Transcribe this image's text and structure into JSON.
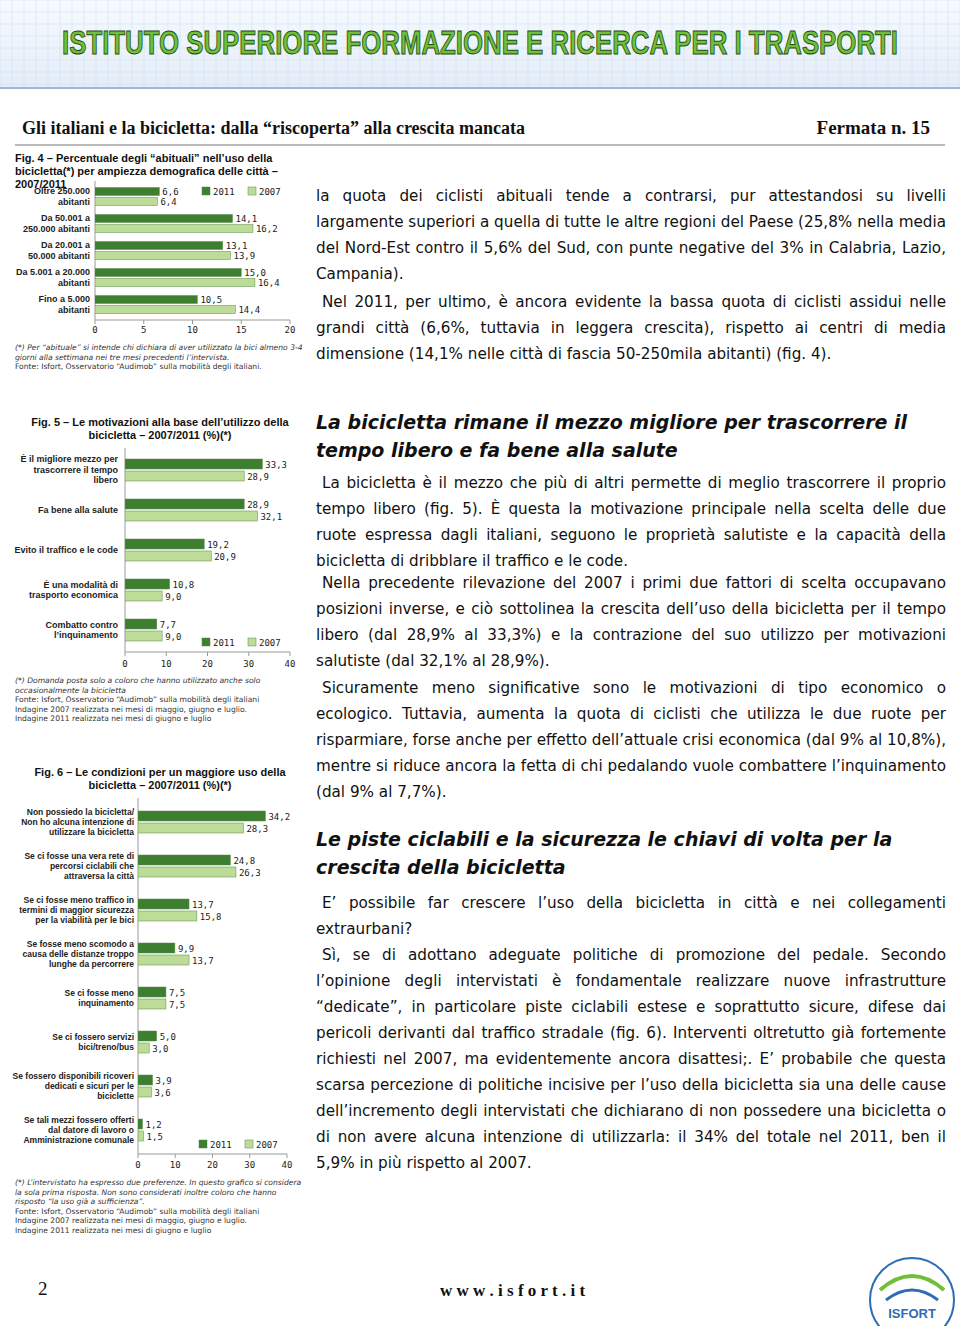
{
  "header": {
    "banner": "ISTITUTO SUPERIORE FORMAZIONE E RICERCA PER I TRASPORTI",
    "title": "Gli italiani e la bicicletta: dalla “riscoperta” alla crescita mancata",
    "issue": "Fermata n. 15"
  },
  "chart_data": [
    {
      "type": "bar",
      "orientation": "horizontal",
      "title": "Fig. 4 – Percentuale degli “abituali” nell’uso della bicicletta(*) per ampiezza demografica delle città – 2007/2011",
      "categories": [
        "Oltre 250.000 abitanti",
        "Da 50.001 a 250.000 abitanti",
        "Da 20.001 a 50.000 abitanti",
        "Da 5.001 a 20.000 abitanti",
        "Fino a 5.000 abitanti"
      ],
      "series": [
        {
          "name": "2011",
          "color": "#3d7f2e",
          "values": [
            6.6,
            14.1,
            13.1,
            15.0,
            10.5
          ],
          "value_labels": [
            "6,6",
            "14,1",
            "13,1",
            "15,0",
            "10,5"
          ]
        },
        {
          "name": "2007",
          "color": "#bcdc98",
          "values": [
            6.4,
            16.2,
            13.9,
            16.4,
            14.4
          ],
          "value_labels": [
            "6,4",
            "16,2",
            "13,9",
            "16,4",
            "14,4"
          ]
        }
      ],
      "xlim": [
        0,
        20
      ],
      "xticks": [
        0,
        5,
        10,
        15,
        20
      ],
      "grid": false,
      "legend": "top-right",
      "data_labels": true,
      "annotations": [
        "(*) Per “abituale” si intende chi dichiara di aver utilizzato la bici almeno 3-4 giorni alla settimana nei tre mesi precedenti l’intervista.",
        "Fonte: Isfort, Osservatorio “Audimob” sulla mobilità degli italiani."
      ]
    },
    {
      "type": "bar",
      "orientation": "horizontal",
      "title": "Fig. 5 – Le motivazioni alla base dell’utilizzo della bicicletta – 2007/2011 (%)(*)",
      "categories": [
        "È il migliore mezzo per trascorrere il tempo libero",
        "Fa bene alla salute",
        "Evito il traffico e le code",
        "È una modalità di trasporto economica",
        "Combatto contro l’inquinamento"
      ],
      "series": [
        {
          "name": "2011",
          "color": "#3d7f2e",
          "values": [
            33.3,
            28.9,
            19.2,
            10.8,
            7.7
          ],
          "value_labels": [
            "33,3",
            "28,9",
            "19,2",
            "10,8",
            "7,7"
          ]
        },
        {
          "name": "2007",
          "color": "#bcdc98",
          "values": [
            28.9,
            32.1,
            20.9,
            9.0,
            9.0
          ],
          "value_labels": [
            "28,9",
            "32,1",
            "20,9",
            "9,0",
            "9,0"
          ]
        }
      ],
      "xlim": [
        0,
        40
      ],
      "xticks": [
        0,
        10,
        20,
        30,
        40
      ],
      "grid": false,
      "legend": "bottom-right",
      "data_labels": true,
      "annotations": [
        "(*) Domanda posta solo a coloro che hanno utilizzato anche solo occasionalmente la bicicletta",
        "Fonte: Isfort, Osservatorio “Audimob” sulla mobilità degli italiani",
        "Indagine 2007 realizzata nei mesi di maggio, giugno e luglio.",
        "Indagine 2011 realizzata nei mesi di giugno e luglio"
      ]
    },
    {
      "type": "bar",
      "orientation": "horizontal",
      "title": "Fig. 6 – Le condizioni per un maggiore uso della bicicletta – 2007/2011 (%)(*)",
      "categories": [
        "Non possiedo la bicicletta/ Non ho alcuna intenzione di utilizzare la bicicletta",
        "Se ci fosse una vera rete di percorsi ciclabili che attraversa la città",
        "Se ci fosse meno traffico in termini di maggior sicurezza per la viabilità per le bici",
        "Se fosse meno scomodo a causa delle distanze troppo lunghe da percorrere",
        "Se ci fosse meno inquinamento",
        "Se ci fossero servizi bici/treno/bus",
        "Se fossero disponibili ricoveri dedicati e sicuri per le biciclette",
        "Se tali mezzi fossero offerti dal datore di lavoro o Amministrazione comunale"
      ],
      "series": [
        {
          "name": "2011",
          "color": "#3d7f2e",
          "values": [
            34.2,
            24.8,
            13.7,
            9.9,
            7.5,
            5.0,
            3.9,
            1.2
          ],
          "value_labels": [
            "34,2",
            "24,8",
            "13,7",
            "9,9",
            "7,5",
            "5,0",
            "3,9",
            "1,2"
          ]
        },
        {
          "name": "2007",
          "color": "#bcdc98",
          "values": [
            28.3,
            26.3,
            15.8,
            13.7,
            7.5,
            3.0,
            3.6,
            1.5
          ],
          "value_labels": [
            "28,3",
            "26,3",
            "15,8",
            "13,7",
            "7,5",
            "3,0",
            "3,6",
            "1,5"
          ]
        }
      ],
      "xlim": [
        0,
        40
      ],
      "xticks": [
        0,
        10,
        20,
        30,
        40
      ],
      "grid": false,
      "legend": "bottom-right",
      "data_labels": true,
      "annotations": [
        "(*) L’intervistato ha espresso due preferenze. In questo grafico si considera la sola prima risposta. Non sono considerati inoltre coloro che hanno risposto “la uso già a sufficienza”.",
        "Fonte: Isfort, Osservatorio “Audimob” sulla mobilità degli italiani",
        "Indagine 2007 realizzata nei mesi di maggio, giugno e luglio.",
        "Indagine 2011 realizzata nei mesi di giugno e luglio"
      ]
    }
  ],
  "body": [
    {
      "paragraph": "la quota dei ciclisti abituali tende a contrarsi, pur attestandosi su livelli largamente superiori a quella di tutte le altre regioni del Paese (25,8% nella media del Nord-Est contro il 5,6% del Sud, con punte negative del 3% in Calabria, Lazio, Campania)."
    },
    {
      "paragraph": "Nel 2011, per ultimo, è ancora evidente la bassa quota di ciclisti assidui nelle grandi città (6,6%, tuttavia in leggera crescita), rispetto ai centri di media dimensione (14,1% nelle città di fascia 50-250mila abitanti) (fig. 4)."
    },
    {
      "heading": "La bicicletta rimane il mezzo migliore per trascorrere il tempo libero e fa bene alla salute"
    },
    {
      "paragraph": "La bicicletta è il mezzo che più di altri permette di meglio trascorrere il proprio tempo libero (fig. 5). È questa la motivazione principale nella scelta delle due ruote espressa dagli italiani, seguono le proprietà salutiste e la capacità della bicicletta di dribblare il traffico e le code."
    },
    {
      "paragraph": "Nella precedente rilevazione del 2007 i primi due fattori di scelta occupavano posizioni inverse, e ciò sottolinea la crescita dell’uso della bicicletta per il tempo libero (dal 28,9% al 33,3%) e la contrazione del suo utilizzo per motivazioni salutiste (dal 32,1% al 28,9%)."
    },
    {
      "paragraph": "Sicuramente meno significative sono le motivazioni di tipo economico o ecologico. Tuttavia, aumenta la quota di ciclisti che utilizza le due ruote per risparmiare, forse anche per effetto dell’attuale crisi economica (dal 9% al 10,8%), mentre si riduce ancora la fetta di chi pedalando vuole combattere l’inquinamento (dal 9% al 7,7%)."
    },
    {
      "heading": "Le piste ciclabili e la sicurezza le chiavi di volta per la crescita della bicicletta"
    },
    {
      "paragraph": "E’ possibile far crescere l’uso della bicicletta in città e nei collegamenti extraurbani?"
    },
    {
      "paragraph": "Sì, se di adottano adeguate politiche di promozione del pedale. Secondo l’opinione degli intervistati è fondamentale realizzare nuove infrastrutture “dedicate”, in particolare piste ciclabili estese e soprattutto sicure, difese dai pericoli derivanti dal traffico stradale (fig. 6). Interventi oltretutto già fortemente richiesti nel 2007, ma evidentemente ancora disattesi;. E’ probabile che questa scarsa percezione di politiche incisive per l’uso della bicicletta sia una delle cause dell’incremento degli intervistati che dichiarano di non possedere una bicicletta o di non avere alcuna intenzione di utilizzarla: il 34% del totale nel 2011, ben il 5,9% in più rispetto al 2007."
    }
  ],
  "footer": {
    "page_number": "2",
    "website": "w w w . i s f o r t . i t",
    "logo": "ISFORT"
  }
}
